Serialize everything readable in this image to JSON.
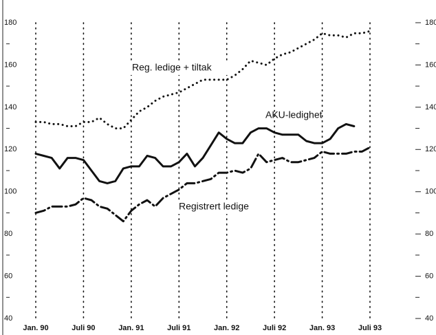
{
  "chart_data": {
    "type": "line",
    "categories": [
      "Jan. 90",
      null,
      null,
      null,
      null,
      null,
      "Juli 90",
      null,
      null,
      null,
      null,
      null,
      "Jan. 91",
      null,
      null,
      null,
      null,
      null,
      "Juli 91",
      null,
      null,
      null,
      null,
      null,
      "Jan. 92",
      null,
      null,
      null,
      null,
      null,
      "Juli 92",
      null,
      null,
      null,
      null,
      null,
      "Jan. 93",
      null,
      null,
      null,
      null,
      null,
      "Juli 93"
    ],
    "series": [
      {
        "name": "AKU-ledighet",
        "color": "#111111",
        "style": "solid",
        "values": [
          118,
          117,
          116,
          111,
          116,
          116,
          115,
          110,
          105,
          104,
          105,
          111,
          112,
          112,
          117,
          116,
          112,
          112,
          114,
          118,
          112,
          116,
          122,
          128,
          125,
          123,
          123,
          128,
          130,
          130,
          128,
          127,
          127,
          127,
          124,
          123,
          123,
          125,
          130,
          132,
          131,
          null,
          null
        ]
      },
      {
        "name": "Registrert ledige",
        "color": "#111111",
        "style": "dashdot",
        "values": [
          90,
          91,
          93,
          93,
          93,
          94,
          97,
          96,
          93,
          92,
          89,
          86,
          91,
          94,
          96,
          93,
          97,
          99,
          101,
          104,
          104,
          105,
          106,
          109,
          109,
          110,
          109,
          111,
          118,
          114,
          115,
          116,
          114,
          114,
          115,
          116,
          119,
          118,
          118,
          118,
          119,
          119,
          121
        ]
      },
      {
        "name": "Reg. ledige + tiltak",
        "color": "#111111",
        "style": "dotted",
        "values": [
          133,
          133,
          132,
          132,
          131,
          131,
          133,
          133,
          135,
          132,
          130,
          130,
          134,
          138,
          140,
          143,
          145,
          146,
          147,
          149,
          151,
          153,
          153,
          153,
          153,
          155,
          158,
          162,
          161,
          160,
          163,
          165,
          166,
          168,
          170,
          172,
          175,
          174,
          174,
          173,
          175,
          175,
          176
        ]
      }
    ],
    "ylim": [
      40,
      180
    ],
    "yticks": [
      40,
      60,
      80,
      100,
      120,
      140,
      160,
      180
    ],
    "y2lim": [
      40,
      180
    ],
    "y2ticks": [
      40,
      60,
      80,
      100,
      120,
      140,
      160,
      180
    ],
    "grid": true
  }
}
